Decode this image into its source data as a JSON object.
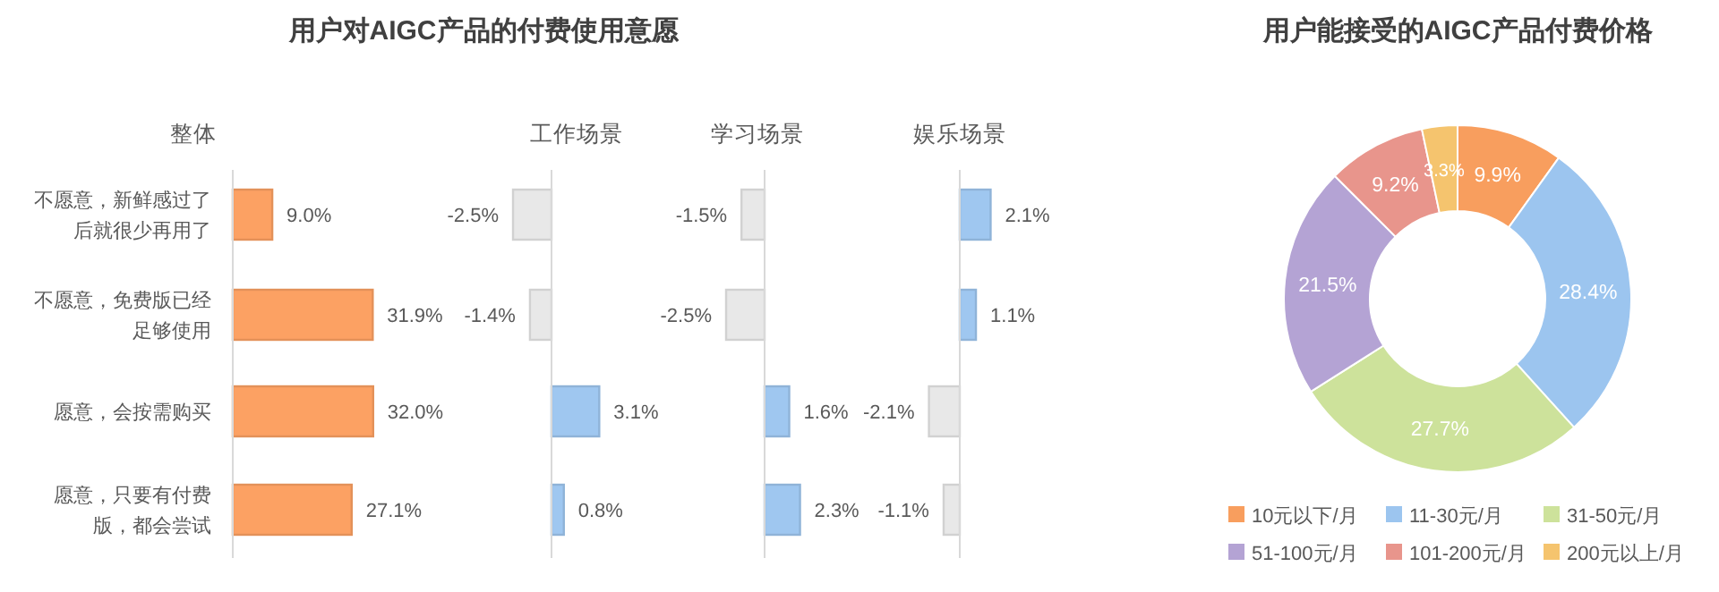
{
  "chart_data": [
    {
      "type": "bar",
      "orientation": "horizontal",
      "title": "用户对AIGC产品的付费使用意愿",
      "subtitle": "整体",
      "tick_labels": "y",
      "categories": [
        "不愿意，新鲜感过了后就很少再用了",
        "不愿意，免费版已经足够使用",
        "愿意，会按需购买",
        "愿意，只要有付费版，都会尝试"
      ],
      "values": [
        9.0,
        31.9,
        32.0,
        27.1
      ],
      "value_labels": [
        "9.0%",
        "31.9%",
        "32.0%",
        "27.1%"
      ],
      "colors": [
        "#fca163",
        "#fca163",
        "#fca163",
        "#fca163"
      ]
    },
    {
      "type": "bar",
      "orientation": "horizontal",
      "subtitle": "工作场景",
      "tick_labels": false,
      "categories": [
        null,
        null,
        null,
        null
      ],
      "values": [
        -2.5,
        -1.4,
        3.1,
        0.8
      ],
      "value_labels": [
        "-2.5%",
        "-1.4%",
        "3.1%",
        "0.8%"
      ],
      "colors": [
        "#e8e8e8",
        "#e8e8e8",
        "#9fc7f0",
        "#9fc7f0"
      ]
    },
    {
      "type": "bar",
      "orientation": "horizontal",
      "subtitle": "学习场景",
      "tick_labels": false,
      "categories": [
        null,
        null,
        null,
        null
      ],
      "values": [
        -1.5,
        -2.5,
        1.6,
        2.3
      ],
      "value_labels": [
        "-1.5%",
        "-2.5%",
        "1.6%",
        "2.3%"
      ],
      "colors": [
        "#e8e8e8",
        "#e8e8e8",
        "#9fc7f0",
        "#9fc7f0"
      ]
    },
    {
      "type": "bar",
      "orientation": "horizontal",
      "subtitle": "娱乐场景",
      "tick_labels": false,
      "categories": [
        null,
        null,
        null,
        null
      ],
      "values": [
        2.1,
        1.1,
        -2.1,
        -1.1
      ],
      "value_labels": [
        "2.1%",
        "1.1%",
        "-2.1%",
        "-1.1%"
      ],
      "colors": [
        "#9fc7f0",
        "#9fc7f0",
        "#e8e8e8",
        "#e8e8e8"
      ]
    },
    {
      "type": "donut",
      "title": "用户能接受的AIGC产品付费价格",
      "legend": "bottom",
      "categories": [
        "10元以下/月",
        "11-30元/月",
        "31-50元/月",
        "51-100元/月",
        "101-200元/月",
        "200元以上/月"
      ],
      "values": [
        9.9,
        28.4,
        27.7,
        21.5,
        9.2,
        3.3
      ],
      "value_labels": [
        "9.9%",
        "28.4%",
        "27.7%",
        "21.5%",
        "9.2%",
        "3.3%"
      ],
      "colors": [
        "#f89e5e",
        "#9cc5ef",
        "#cde29b",
        "#b4a3d4",
        "#e8958c",
        "#f5c46e"
      ]
    }
  ]
}
